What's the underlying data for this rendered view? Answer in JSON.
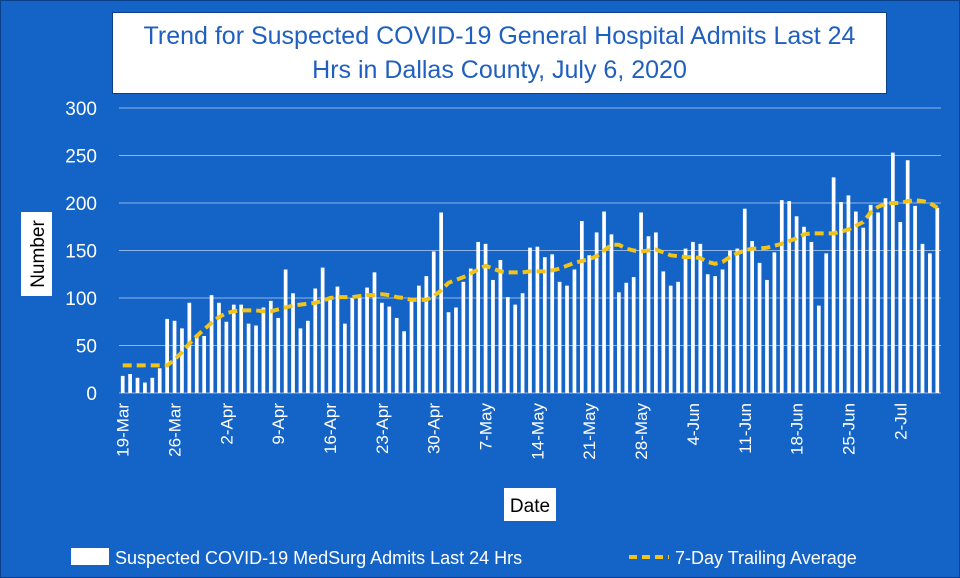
{
  "chart_data": {
    "type": "bar",
    "title_line1": "Trend for Suspected COVID-19 General Hospital Admits Last 24",
    "title_line2": "Hrs in Dallas County, July 6, 2020",
    "xlabel": "Date",
    "ylabel": "Number",
    "ylim": [
      0,
      300
    ],
    "yticks": [
      0,
      50,
      100,
      150,
      200,
      250,
      300
    ],
    "xticks": [
      {
        "label": "19-Mar",
        "index": 0
      },
      {
        "label": "26-Mar",
        "index": 7
      },
      {
        "label": "2-Apr",
        "index": 14
      },
      {
        "label": "9-Apr",
        "index": 21
      },
      {
        "label": "16-Apr",
        "index": 28
      },
      {
        "label": "23-Apr",
        "index": 35
      },
      {
        "label": "30-Apr",
        "index": 42
      },
      {
        "label": "7-May",
        "index": 49
      },
      {
        "label": "14-May",
        "index": 56
      },
      {
        "label": "21-May",
        "index": 63
      },
      {
        "label": "28-May",
        "index": 70
      },
      {
        "label": "4-Jun",
        "index": 77
      },
      {
        "label": "11-Jun",
        "index": 84
      },
      {
        "label": "18-Jun",
        "index": 91
      },
      {
        "label": "25-Jun",
        "index": 98
      },
      {
        "label": "2-Jul",
        "index": 105
      }
    ],
    "series": [
      {
        "name": "Suspected COVID-19 MedSurg Admits Last 24 Hrs",
        "kind": "bar",
        "color": "#ffffff",
        "values": [
          18,
          20,
          16,
          11,
          16,
          26,
          78,
          76,
          68,
          95,
          61,
          60,
          103,
          95,
          75,
          93,
          93,
          73,
          71,
          90,
          97,
          79,
          130,
          105,
          68,
          76,
          110,
          132,
          98,
          112,
          73,
          100,
          102,
          111,
          127,
          95,
          91,
          79,
          65,
          97,
          113,
          123,
          149,
          190,
          85,
          90,
          117,
          131,
          159,
          157,
          119,
          140,
          101,
          93,
          105,
          153,
          154,
          143,
          146,
          117,
          113,
          130,
          181,
          145,
          169,
          191,
          167,
          106,
          116,
          122,
          190,
          165,
          169,
          128,
          113,
          117,
          152,
          159,
          157,
          125,
          123,
          130,
          150,
          152,
          194,
          160,
          137,
          119,
          148,
          203,
          202,
          186,
          175,
          159,
          92,
          147,
          227,
          201,
          208,
          191,
          174,
          198,
          190,
          205,
          253,
          180,
          245,
          197,
          157,
          147,
          195
        ]
      },
      {
        "name": "7-Day Trailing Average",
        "kind": "line",
        "color": "#f2c318",
        "values": [
          29,
          29,
          29,
          29,
          29,
          29,
          29,
          35,
          43,
          52,
          60,
          67,
          74,
          80,
          84,
          86,
          87,
          87,
          87,
          86,
          86,
          88,
          90,
          92,
          93,
          94,
          95,
          97,
          100,
          101,
          101,
          101,
          102,
          103,
          103,
          104,
          103,
          101,
          100,
          98,
          98,
          98,
          102,
          108,
          116,
          119,
          122,
          126,
          130,
          134,
          131,
          128,
          127,
          127,
          127,
          128,
          128,
          128,
          129,
          131,
          134,
          137,
          139,
          141,
          144,
          150,
          156,
          156,
          152,
          150,
          149,
          150,
          151,
          148,
          145,
          144,
          143,
          143,
          142,
          138,
          136,
          138,
          143,
          147,
          150,
          152,
          152,
          153,
          155,
          157,
          160,
          163,
          167,
          168,
          168,
          168,
          168,
          170,
          172,
          176,
          180,
          190,
          196,
          199,
          200,
          200,
          202,
          203,
          202,
          200,
          195
        ]
      }
    ]
  }
}
